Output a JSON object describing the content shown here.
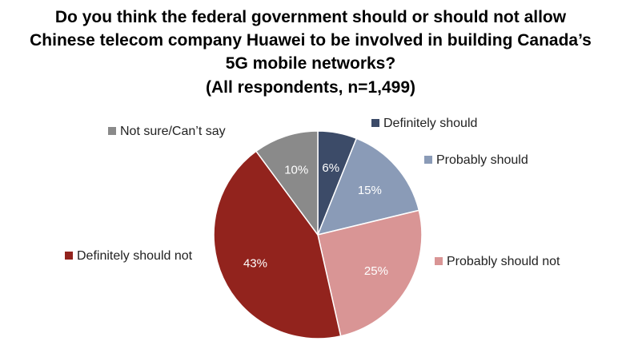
{
  "chart_data": {
    "type": "pie",
    "title_lines": [
      "Do you think the federal government should or should not allow",
      "Chinese telecom company Huawei to be involved in building Canada’s",
      "5G mobile networks?",
      "(All respondents, n=1,499)"
    ],
    "slices": [
      {
        "name": "Definitely should",
        "value": 6,
        "label": "6%",
        "color": "#3c4b68"
      },
      {
        "name": "Probably should",
        "value": 15,
        "label": "15%",
        "color": "#8a9bb7"
      },
      {
        "name": "Probably should not",
        "value": 25,
        "label": "25%",
        "color": "#d99595"
      },
      {
        "name": "Definitely should not",
        "value": 43,
        "label": "43%",
        "color": "#92231d"
      },
      {
        "name": "Not sure/Can’t say",
        "value": 10,
        "label": "10%",
        "color": "#8a8a8a"
      }
    ],
    "start_angle_deg": 0,
    "direction": "clockwise"
  }
}
